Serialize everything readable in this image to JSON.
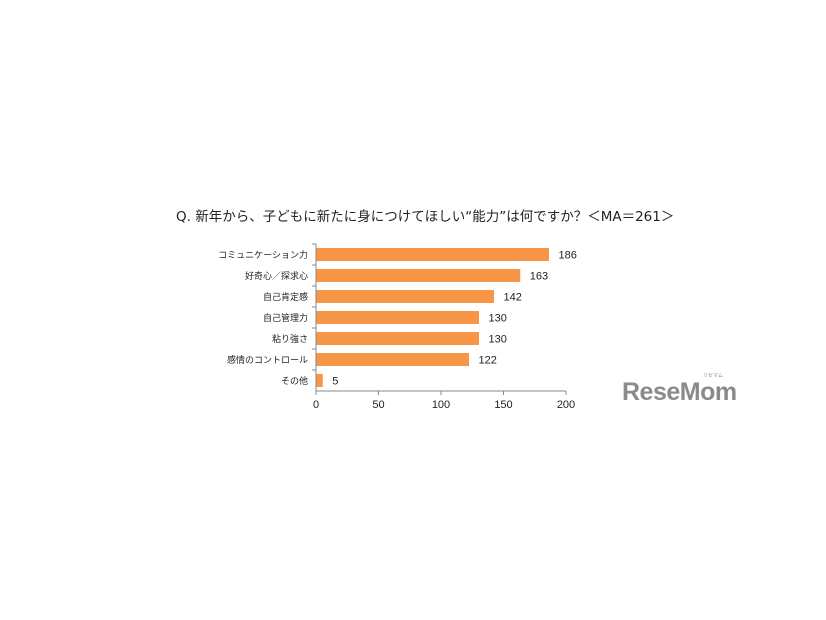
{
  "chart_data": {
    "type": "bar",
    "orientation": "horizontal",
    "title": "Q. 新年から、子どもに新たに身につけてほしい“能力”は何ですか？＜MA＝261＞",
    "categories": [
      "コミュニケーション力",
      "好奇心／探求心",
      "自己肯定感",
      "自己管理力",
      "粘り強さ",
      "感情のコントロール",
      "その他"
    ],
    "values": [
      186,
      163,
      142,
      130,
      130,
      122,
      5
    ],
    "xlim": [
      0,
      200
    ],
    "xticks": [
      0,
      50,
      100,
      150,
      200
    ],
    "xlabel": "",
    "ylabel": "",
    "grid": false,
    "bar_color": "#F79646",
    "data_labels": true
  },
  "logo": {
    "text": "ReseMom",
    "sub": "リセマム"
  }
}
